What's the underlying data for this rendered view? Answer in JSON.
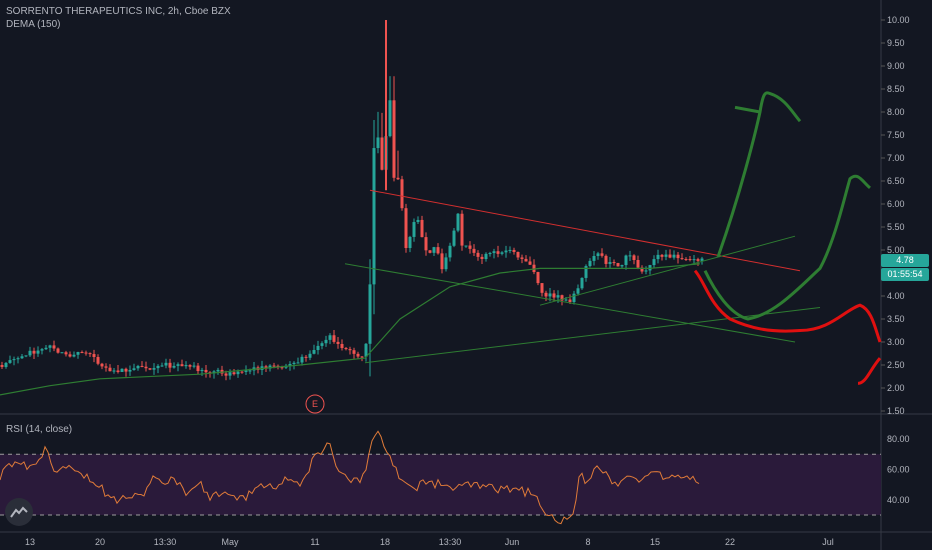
{
  "header": {
    "symbol_line": "SORRENTO THERAPEUTICS INC, 2h, Cboe BZX",
    "indicator_line": "DEMA (150)",
    "rsi_line": "RSI (14, close)"
  },
  "price_panel": {
    "last_price": "4.78",
    "countdown": "01:55:54",
    "earnings_marker": "E",
    "y_ticks": [
      "10.00",
      "9.50",
      "9.00",
      "8.50",
      "8.00",
      "7.50",
      "7.00",
      "6.50",
      "6.00",
      "5.50",
      "5.00",
      "4.50",
      "4.00",
      "3.50",
      "3.00",
      "2.50",
      "2.00",
      "1.50"
    ]
  },
  "rsi_panel": {
    "y_ticks": [
      "80.00",
      "60.00",
      "40.00"
    ],
    "upper_band": 70,
    "lower_band": 30
  },
  "x_axis": {
    "labels": [
      "13",
      "20",
      "13:30",
      "May",
      "11",
      "18",
      "13:30",
      "Jun",
      "8",
      "15",
      "22",
      "Jul"
    ]
  },
  "colors": {
    "background": "#131722",
    "up_candle": "#26a69a",
    "down_candle": "#ef5350",
    "dema": "#2e7d32",
    "rsi": "#e07b39",
    "rsi_band_fill": "#2a1a3a",
    "drawing_green": "#2e7d32",
    "drawing_red": "#e01010",
    "resistance_line": "#d32f2f"
  },
  "icons": {
    "logo": "tradingview-logo-icon"
  },
  "chart_data": [
    {
      "type": "candlestick",
      "title": "SORRENTO THERAPEUTICS INC, 2h, Cboe BZX",
      "indicator": "DEMA (150)",
      "ylim": [
        1.5,
        10.2
      ],
      "price_anchors": [
        [
          0,
          2.5
        ],
        [
          10,
          2.55
        ],
        [
          20,
          2.65
        ],
        [
          30,
          2.75
        ],
        [
          42,
          2.85
        ],
        [
          50,
          2.95
        ],
        [
          60,
          2.75
        ],
        [
          70,
          2.7
        ],
        [
          80,
          2.85
        ],
        [
          90,
          2.7
        ],
        [
          100,
          2.55
        ],
        [
          110,
          2.4
        ],
        [
          120,
          2.35
        ],
        [
          130,
          2.4
        ],
        [
          140,
          2.45
        ],
        [
          150,
          2.35
        ],
        [
          160,
          2.55
        ],
        [
          170,
          2.5
        ],
        [
          180,
          2.45
        ],
        [
          190,
          2.45
        ],
        [
          200,
          2.4
        ],
        [
          210,
          2.35
        ],
        [
          220,
          2.35
        ],
        [
          230,
          2.3
        ],
        [
          240,
          2.35
        ],
        [
          250,
          2.35
        ],
        [
          260,
          2.45
        ],
        [
          270,
          2.5
        ],
        [
          280,
          2.45
        ],
        [
          290,
          2.5
        ],
        [
          300,
          2.6
        ],
        [
          310,
          2.75
        ],
        [
          320,
          2.9
        ],
        [
          330,
          3.1
        ],
        [
          338,
          2.95
        ],
        [
          345,
          2.85
        ],
        [
          355,
          2.75
        ],
        [
          365,
          2.65
        ],
        [
          370,
          4.2
        ],
        [
          375,
          8.0
        ],
        [
          380,
          7.0
        ],
        [
          385,
          6.5
        ],
        [
          388,
          9.5
        ],
        [
          392,
          7.0
        ],
        [
          396,
          6.2
        ],
        [
          400,
          6.8
        ],
        [
          404,
          5.0
        ],
        [
          410,
          5.3
        ],
        [
          416,
          5.8
        ],
        [
          420,
          5.5
        ],
        [
          425,
          5.0
        ],
        [
          430,
          4.9
        ],
        [
          436,
          5.1
        ],
        [
          441,
          4.6
        ],
        [
          446,
          4.8
        ],
        [
          452,
          5.2
        ],
        [
          458,
          5.8
        ],
        [
          462,
          5.1
        ],
        [
          470,
          5.0
        ],
        [
          480,
          4.85
        ],
        [
          490,
          4.9
        ],
        [
          500,
          4.95
        ],
        [
          510,
          4.95
        ],
        [
          520,
          4.85
        ],
        [
          530,
          4.7
        ],
        [
          540,
          4.2
        ],
        [
          545,
          4.0
        ],
        [
          550,
          4.05
        ],
        [
          558,
          4.0
        ],
        [
          565,
          3.85
        ],
        [
          572,
          3.95
        ],
        [
          580,
          4.3
        ],
        [
          587,
          4.65
        ],
        [
          593,
          4.8
        ],
        [
          600,
          5.0
        ],
        [
          605,
          4.7
        ],
        [
          612,
          4.8
        ],
        [
          620,
          4.6
        ],
        [
          628,
          4.9
        ],
        [
          635,
          4.75
        ],
        [
          642,
          4.5
        ],
        [
          650,
          4.65
        ],
        [
          658,
          4.85
        ],
        [
          665,
          4.9
        ],
        [
          672,
          4.85
        ],
        [
          680,
          4.85
        ],
        [
          688,
          4.8
        ],
        [
          696,
          4.75
        ],
        [
          702,
          4.78
        ]
      ],
      "dema_150_anchors": [
        [
          0,
          1.85
        ],
        [
          50,
          2.05
        ],
        [
          100,
          2.2
        ],
        [
          200,
          2.3
        ],
        [
          300,
          2.5
        ],
        [
          365,
          2.65
        ],
        [
          400,
          3.5
        ],
        [
          450,
          4.2
        ],
        [
          500,
          4.5
        ],
        [
          540,
          4.6
        ],
        [
          600,
          4.6
        ],
        [
          650,
          4.6
        ],
        [
          700,
          4.7
        ]
      ]
    },
    {
      "type": "line",
      "title": "RSI (14, close)",
      "ylim": [
        20,
        95
      ],
      "reference_lines": [
        70,
        30
      ],
      "rsi_anchors": [
        [
          0,
          55
        ],
        [
          10,
          62
        ],
        [
          20,
          66
        ],
        [
          30,
          60
        ],
        [
          45,
          73
        ],
        [
          55,
          60
        ],
        [
          70,
          65
        ],
        [
          80,
          58
        ],
        [
          95,
          52
        ],
        [
          105,
          45
        ],
        [
          115,
          40
        ],
        [
          125,
          44
        ],
        [
          140,
          42
        ],
        [
          155,
          55
        ],
        [
          165,
          48
        ],
        [
          175,
          55
        ],
        [
          185,
          45
        ],
        [
          200,
          50
        ],
        [
          210,
          42
        ],
        [
          220,
          45
        ],
        [
          240,
          40
        ],
        [
          250,
          44
        ],
        [
          260,
          50
        ],
        [
          275,
          48
        ],
        [
          290,
          55
        ],
        [
          300,
          50
        ],
        [
          310,
          62
        ],
        [
          318,
          72
        ],
        [
          322,
          68
        ],
        [
          326,
          80
        ],
        [
          330,
          74
        ],
        [
          336,
          60
        ],
        [
          345,
          55
        ],
        [
          355,
          52
        ],
        [
          365,
          55
        ],
        [
          370,
          75
        ],
        [
          375,
          85
        ],
        [
          380,
          82
        ],
        [
          386,
          74
        ],
        [
          392,
          66
        ],
        [
          398,
          58
        ],
        [
          405,
          50
        ],
        [
          415,
          48
        ],
        [
          425,
          52
        ],
        [
          440,
          50
        ],
        [
          455,
          47
        ],
        [
          470,
          50
        ],
        [
          485,
          48
        ],
        [
          500,
          46
        ],
        [
          515,
          48
        ],
        [
          525,
          45
        ],
        [
          535,
          44
        ],
        [
          545,
          30
        ],
        [
          555,
          27
        ],
        [
          565,
          26
        ],
        [
          572,
          28
        ],
        [
          580,
          56
        ],
        [
          588,
          50
        ],
        [
          596,
          64
        ],
        [
          605,
          58
        ],
        [
          614,
          52
        ],
        [
          622,
          50
        ],
        [
          630,
          58
        ],
        [
          640,
          52
        ],
        [
          648,
          55
        ],
        [
          656,
          58
        ],
        [
          665,
          54
        ],
        [
          674,
          57
        ],
        [
          682,
          55
        ],
        [
          690,
          53
        ],
        [
          700,
          53
        ]
      ]
    }
  ]
}
